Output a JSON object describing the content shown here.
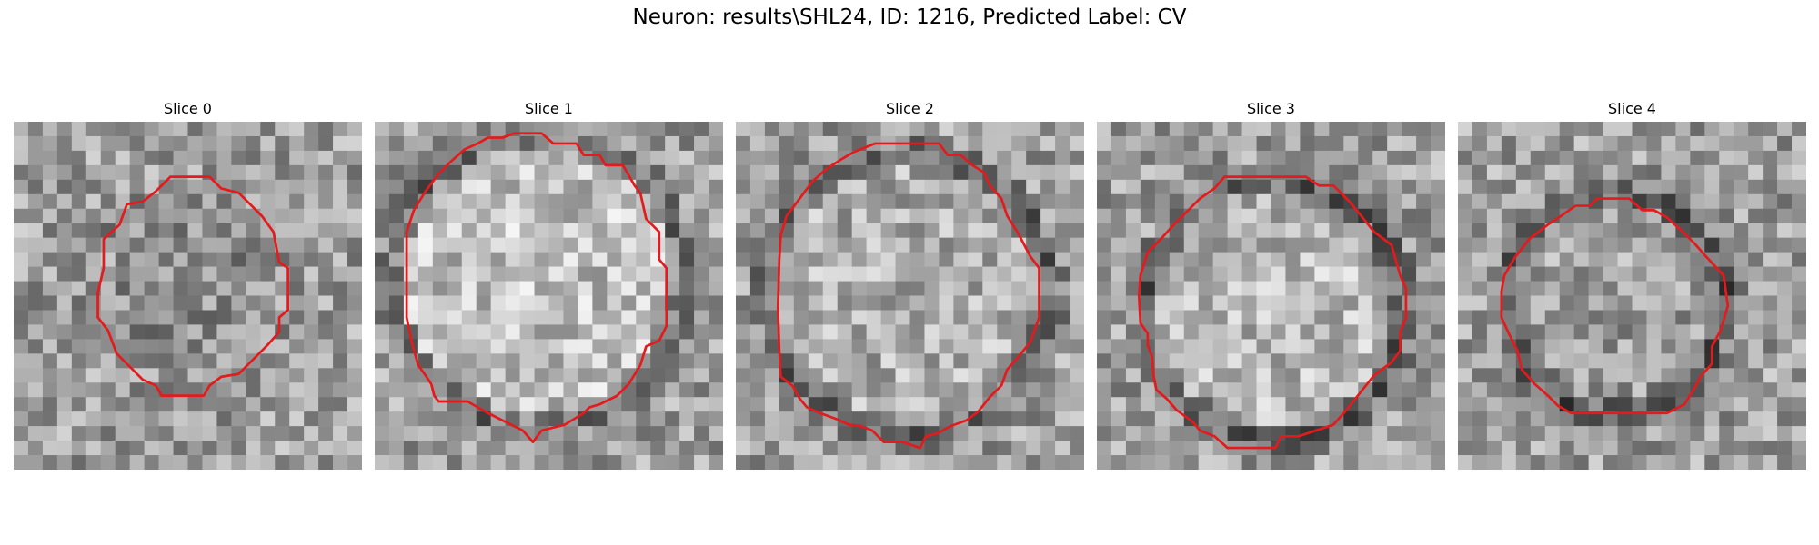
{
  "figure": {
    "title": "Neuron: results\\SHL24, ID: 1216, Predicted Label: CV"
  },
  "image": {
    "colormap": "gray",
    "contour_color": "#e41a1c"
  },
  "panels": [
    {
      "title": "Slice 0"
    },
    {
      "title": "Slice 1"
    },
    {
      "title": "Slice 2"
    },
    {
      "title": "Slice 3"
    },
    {
      "title": "Slice 4"
    }
  ]
}
